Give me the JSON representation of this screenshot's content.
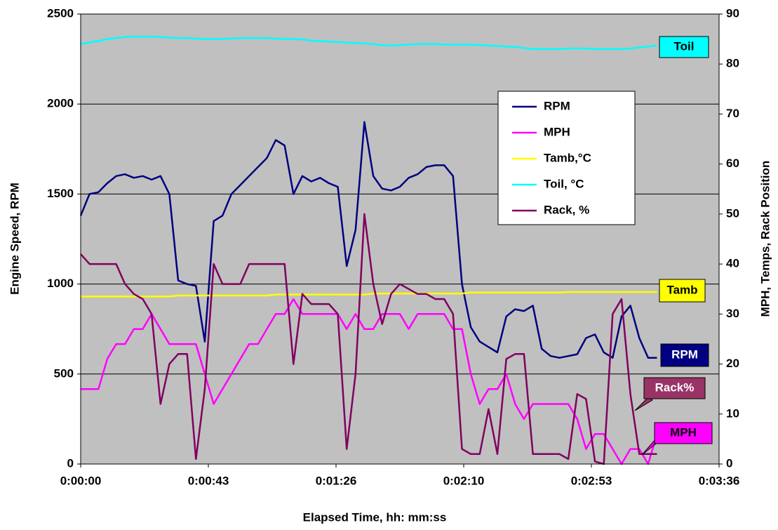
{
  "chart_data": {
    "type": "line",
    "x_label": "Elapsed Time, hh: mm:ss",
    "y_label": "Engine Speed, RPM",
    "y2_label": "MPH, Temps, Rack Position",
    "x": [
      0,
      3,
      6,
      9,
      12,
      15,
      18,
      21,
      24,
      27,
      30,
      33,
      36,
      39,
      42,
      45,
      48,
      51,
      54,
      57,
      60,
      63,
      66,
      69,
      72,
      75,
      78,
      81,
      84,
      87,
      90,
      93,
      96,
      99,
      102,
      105,
      108,
      111,
      114,
      117,
      120,
      123,
      126,
      129,
      132,
      135,
      138,
      141,
      144,
      147,
      150,
      153,
      156,
      159,
      162,
      165,
      168,
      171,
      174,
      177,
      180,
      183,
      186,
      189,
      192,
      195
    ],
    "xlim": [
      0,
      216
    ],
    "xticks": [
      {
        "value": 0,
        "label": "0:00:00"
      },
      {
        "value": 43.2,
        "label": "0:00:43"
      },
      {
        "value": 86.4,
        "label": "0:01:26"
      },
      {
        "value": 129.6,
        "label": "0:02:10"
      },
      {
        "value": 172.8,
        "label": "0:02:53"
      },
      {
        "value": 216,
        "label": "0:03:36"
      }
    ],
    "ylim": [
      0,
      2500
    ],
    "yticks": [
      0,
      500,
      1000,
      1500,
      2000,
      2500
    ],
    "y2lim": [
      0,
      90
    ],
    "y2ticks": [
      0,
      10,
      20,
      30,
      40,
      50,
      60,
      70,
      80,
      90
    ],
    "grid": true,
    "series": [
      {
        "name": "RPM",
        "color": "#000080",
        "values": [
          1380,
          1500,
          1510,
          1560,
          1600,
          1610,
          1590,
          1600,
          1580,
          1600,
          1500,
          1020,
          1000,
          990,
          680,
          1350,
          1380,
          1500,
          1550,
          1600,
          1650,
          1700,
          1800,
          1770,
          1500,
          1600,
          1570,
          1590,
          1560,
          1540,
          1100,
          1300,
          1900,
          1600,
          1530,
          1520,
          1540,
          1590,
          1610,
          1650,
          1660,
          1660,
          1600,
          1000,
          760,
          680,
          650,
          620,
          820,
          860,
          850,
          880,
          640,
          600,
          590,
          600,
          610,
          700,
          720,
          620,
          590,
          820,
          880,
          700,
          590,
          590
        ]
      },
      {
        "name": "MPH",
        "color": "#ff00ff",
        "axis": "y2",
        "values": [
          15,
          15,
          15,
          21,
          24,
          24,
          27,
          27,
          30,
          27,
          24,
          24,
          24,
          24,
          18,
          12,
          15,
          18,
          21,
          24,
          24,
          27,
          30,
          30,
          33,
          30,
          30,
          30,
          30,
          30,
          27,
          30,
          27,
          27,
          30,
          30,
          30,
          27,
          30,
          30,
          30,
          30,
          27,
          27,
          18,
          12,
          15,
          15,
          18,
          12,
          9,
          12,
          12,
          12,
          12,
          12,
          9,
          3,
          6,
          6,
          3,
          0,
          3,
          3,
          0,
          6
        ]
      },
      {
        "name": "Tamb,°C",
        "color": "#ffff00",
        "axis": "y2",
        "values": [
          33.5,
          33.5,
          33.5,
          33.5,
          33.5,
          33.5,
          33.5,
          33.5,
          33.5,
          33.5,
          33.5,
          33.7,
          33.7,
          33.7,
          33.7,
          33.7,
          33.7,
          33.7,
          33.7,
          33.7,
          33.7,
          33.7,
          33.9,
          33.9,
          33.9,
          33.9,
          33.9,
          33.9,
          33.9,
          33.9,
          33.9,
          33.9,
          33.9,
          34.1,
          34.1,
          34.1,
          34.1,
          34.1,
          34.1,
          34.1,
          34.1,
          34.1,
          34.1,
          34.1,
          34.3,
          34.3,
          34.3,
          34.3,
          34.3,
          34.3,
          34.3,
          34.3,
          34.3,
          34.3,
          34.3,
          34.4,
          34.4,
          34.4,
          34.4,
          34.4,
          34.4,
          34.4,
          34.4,
          34.4,
          34.4,
          34.4
        ]
      },
      {
        "name": "Toil, °C",
        "color": "#00ffff",
        "axis": "y2",
        "values": [
          84,
          84.3,
          84.6,
          85,
          85.2,
          85.4,
          85.5,
          85.5,
          85.5,
          85.4,
          85.3,
          85.2,
          85.2,
          85.1,
          85,
          85,
          85,
          85.1,
          85.2,
          85.2,
          85.2,
          85.2,
          85.1,
          85,
          85,
          84.9,
          84.7,
          84.6,
          84.5,
          84.4,
          84.3,
          84.2,
          84.1,
          84,
          83.8,
          83.7,
          83.8,
          83.9,
          84,
          84,
          84,
          83.9,
          83.9,
          83.9,
          83.9,
          83.8,
          83.7,
          83.6,
          83.5,
          83.4,
          83.2,
          83,
          83,
          83,
          83,
          83.1,
          83.1,
          83.1,
          83,
          83,
          83,
          83,
          83.1,
          83.3,
          83.5,
          83.7
        ]
      },
      {
        "name": "Rack, %",
        "color": "#800060",
        "axis": "y2",
        "values": [
          42,
          40,
          40,
          40,
          40,
          36,
          34,
          33,
          30,
          12,
          20,
          22,
          22,
          1,
          15,
          40,
          36,
          36,
          36,
          40,
          40,
          40,
          40,
          40,
          20,
          34,
          32,
          32,
          32,
          30,
          3,
          18,
          50,
          36,
          28,
          34,
          36,
          35,
          34,
          34,
          33,
          33,
          30,
          3,
          2,
          2,
          11,
          2,
          21,
          22,
          22,
          2,
          2,
          2,
          2,
          1,
          14,
          13,
          0.5,
          0,
          30,
          33,
          14,
          2,
          2,
          2
        ]
      }
    ],
    "annotations": [
      {
        "text": "Toil",
        "color": "#00ffff",
        "text_color": "#000000"
      },
      {
        "text": "Tamb",
        "color": "#ffff00",
        "text_color": "#000000"
      },
      {
        "text": "RPM",
        "color": "#000080",
        "text_color": "#ffffff"
      },
      {
        "text": "Rack%",
        "color": "#993366",
        "text_color": "#ffffff"
      },
      {
        "text": "MPH",
        "color": "#ff00ff",
        "text_color": "#000000"
      }
    ]
  }
}
